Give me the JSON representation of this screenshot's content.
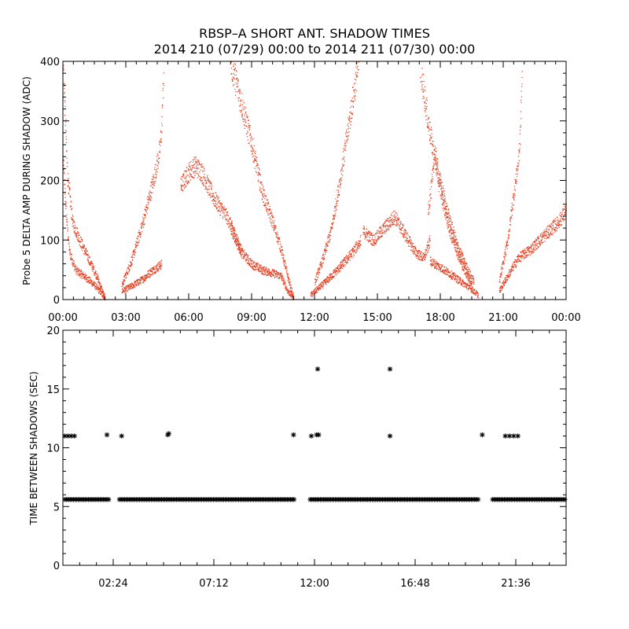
{
  "title": {
    "line1": "RBSP–A SHORT ANT. SHADOW TIMES",
    "line2": "2014 210 (07/29) 00:00 to 2014 211 (07/30) 00:00"
  },
  "colors": {
    "top_points": "#e8391a",
    "bottom_points": "#000000",
    "axes": "#000000"
  },
  "chart_data": [
    {
      "type": "scatter",
      "name": "shadow-amplitude",
      "xlabel": "",
      "ylabel": "Probe 5 DELTA AMP DURING SHADOW (ADC)",
      "xlim_hours": [
        0,
        24
      ],
      "ylim": [
        0,
        400
      ],
      "xticks": {
        "hours": [
          0,
          3,
          6,
          9,
          12,
          15,
          18,
          21,
          24
        ],
        "labels": [
          "00:00",
          "03:00",
          "06:00",
          "09:00",
          "12:00",
          "15:00",
          "18:00",
          "21:00",
          "00:00"
        ]
      },
      "yticks": {
        "values": [
          0,
          100,
          200,
          300,
          400
        ],
        "labels": [
          "0",
          "100",
          "200",
          "300",
          "400"
        ]
      },
      "grid": false,
      "series_polylines": [
        [
          [
            0.0,
            230
          ],
          [
            0.15,
            140
          ],
          [
            0.3,
            80
          ],
          [
            0.6,
            50
          ],
          [
            1.0,
            40
          ],
          [
            1.5,
            25
          ],
          [
            2.0,
            3
          ]
        ],
        [
          [
            0.0,
            400
          ],
          [
            0.2,
            210
          ],
          [
            0.45,
            130
          ],
          [
            0.8,
            100
          ],
          [
            1.2,
            70
          ],
          [
            1.6,
            40
          ],
          [
            2.0,
            2
          ]
        ],
        [
          [
            2.8,
            15
          ],
          [
            3.2,
            22
          ],
          [
            3.8,
            35
          ],
          [
            4.2,
            48
          ],
          [
            4.7,
            60
          ]
        ],
        [
          [
            2.8,
            25
          ],
          [
            3.3,
            70
          ],
          [
            3.8,
            130
          ],
          [
            4.3,
            200
          ],
          [
            4.6,
            250
          ],
          [
            4.7,
            290
          ],
          [
            4.8,
            400
          ]
        ],
        [
          [
            5.6,
            190
          ],
          [
            6.0,
            215
          ],
          [
            6.3,
            225
          ],
          [
            6.6,
            215
          ],
          [
            7.2,
            170
          ],
          [
            7.8,
            140
          ],
          [
            8.2,
            110
          ],
          [
            8.5,
            80
          ]
        ],
        [
          [
            8.0,
            120
          ],
          [
            8.5,
            80
          ],
          [
            9.0,
            60
          ],
          [
            9.5,
            50
          ],
          [
            10.0,
            45
          ],
          [
            10.4,
            40
          ],
          [
            10.7,
            15
          ],
          [
            11.0,
            3
          ]
        ],
        [
          [
            8.0,
            400
          ],
          [
            8.5,
            330
          ],
          [
            9.0,
            260
          ],
          [
            9.5,
            180
          ],
          [
            10.0,
            130
          ],
          [
            10.4,
            85
          ],
          [
            10.7,
            40
          ],
          [
            11.0,
            2
          ]
        ],
        [
          [
            11.8,
            8
          ],
          [
            12.5,
            30
          ],
          [
            13.2,
            55
          ],
          [
            13.8,
            80
          ],
          [
            14.2,
            100
          ]
        ],
        [
          [
            12.0,
            30
          ],
          [
            12.4,
            70
          ],
          [
            12.8,
            120
          ],
          [
            13.2,
            200
          ],
          [
            13.6,
            290
          ],
          [
            14.1,
            400
          ]
        ],
        [
          [
            14.3,
            115
          ],
          [
            14.8,
            100
          ],
          [
            15.3,
            120
          ],
          [
            15.8,
            140
          ],
          [
            16.3,
            110
          ],
          [
            16.8,
            80
          ],
          [
            17.2,
            70
          ],
          [
            17.5,
            100
          ]
        ],
        [
          [
            17.4,
            150
          ],
          [
            17.6,
            200
          ],
          [
            17.7,
            250
          ],
          [
            17.9,
            210
          ],
          [
            18.3,
            150
          ],
          [
            18.8,
            90
          ],
          [
            19.3,
            50
          ],
          [
            19.6,
            30
          ]
        ],
        [
          [
            17.5,
            65
          ],
          [
            18.2,
            50
          ],
          [
            18.8,
            35
          ],
          [
            19.4,
            20
          ],
          [
            19.8,
            8
          ]
        ],
        [
          [
            17.0,
            400
          ],
          [
            17.4,
            300
          ],
          [
            17.9,
            200
          ],
          [
            18.4,
            120
          ],
          [
            19.0,
            60
          ],
          [
            19.5,
            25
          ]
        ],
        [
          [
            20.8,
            15
          ],
          [
            21.2,
            40
          ],
          [
            21.7,
            70
          ],
          [
            22.3,
            85
          ],
          [
            23.0,
            110
          ],
          [
            23.6,
            130
          ],
          [
            24.0,
            150
          ]
        ],
        [
          [
            20.8,
            30
          ],
          [
            21.2,
            100
          ],
          [
            21.5,
            180
          ],
          [
            21.7,
            230
          ],
          [
            21.8,
            280
          ],
          [
            21.9,
            400
          ]
        ]
      ]
    },
    {
      "type": "scatter",
      "name": "time-between-shadows",
      "xlabel": "",
      "ylabel": "TIME BETWEEN SHADOWS (SEC)",
      "xlim_hours": [
        0,
        24
      ],
      "ylim": [
        0,
        20
      ],
      "xticks": {
        "hours": [
          2.4,
          7.2,
          12.0,
          16.8,
          21.6
        ],
        "labels": [
          "02:24",
          "07:12",
          "12:00",
          "16:48",
          "21:36"
        ]
      },
      "yticks": {
        "values": [
          0,
          5,
          10,
          15,
          20
        ],
        "labels": [
          "0",
          "5",
          "10",
          "15",
          "20"
        ]
      },
      "grid": false,
      "baseline_value": 5.6,
      "baseline_segments_hours": [
        [
          0.1,
          2.2
        ],
        [
          2.7,
          11.1
        ],
        [
          11.8,
          19.8
        ],
        [
          20.5,
          24.0
        ]
      ],
      "points": [
        {
          "x": 0.1,
          "y": 11.0
        },
        {
          "x": 0.25,
          "y": 11.0
        },
        {
          "x": 0.4,
          "y": 11.0
        },
        {
          "x": 0.55,
          "y": 11.0
        },
        {
          "x": 2.1,
          "y": 11.1
        },
        {
          "x": 2.8,
          "y": 11.0
        },
        {
          "x": 5.0,
          "y": 11.1
        },
        {
          "x": 5.05,
          "y": 11.2
        },
        {
          "x": 11.0,
          "y": 11.1
        },
        {
          "x": 11.85,
          "y": 11.0
        },
        {
          "x": 12.1,
          "y": 11.1
        },
        {
          "x": 12.2,
          "y": 11.1
        },
        {
          "x": 12.15,
          "y": 16.7
        },
        {
          "x": 15.6,
          "y": 16.7
        },
        {
          "x": 15.6,
          "y": 11.0
        },
        {
          "x": 20.0,
          "y": 11.1
        },
        {
          "x": 21.1,
          "y": 11.0
        },
        {
          "x": 21.3,
          "y": 11.0
        },
        {
          "x": 21.5,
          "y": 11.0
        },
        {
          "x": 21.7,
          "y": 11.0
        }
      ]
    }
  ]
}
